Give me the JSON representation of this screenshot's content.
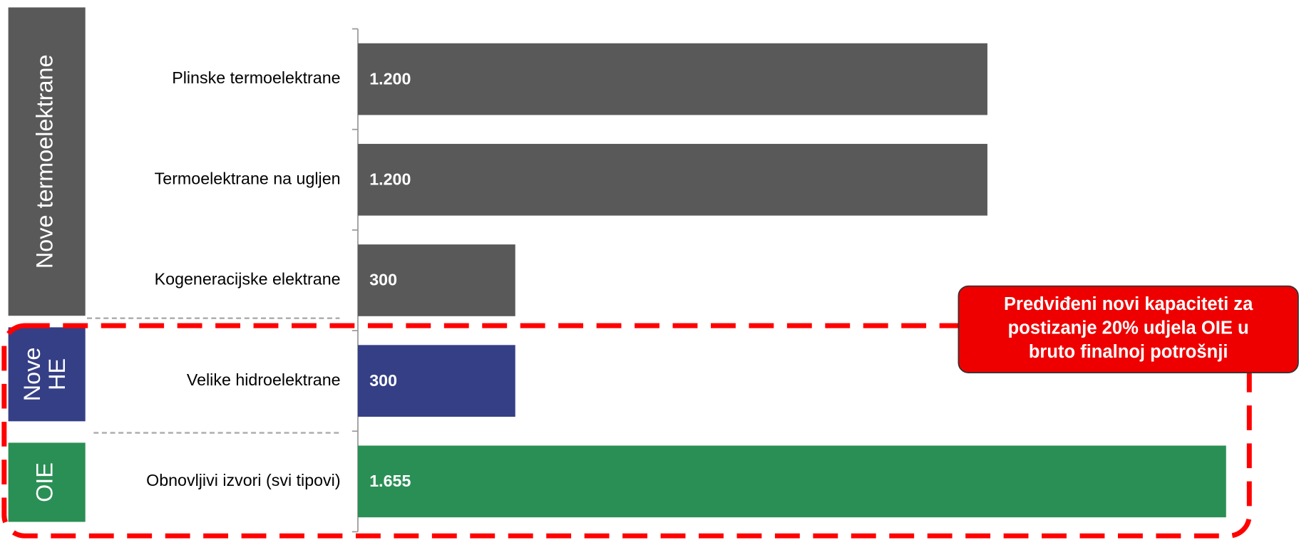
{
  "chart_data": {
    "type": "bar",
    "orientation": "horizontal",
    "categories": [
      "Plinske termoelektrane",
      "Termoelektrane na ugljen",
      "Kogeneracijske elektrane",
      "Velike hidroelektrane",
      "Obnovljivi izvori (svi tipovi)"
    ],
    "values": [
      1200,
      1200,
      300,
      300,
      1655
    ],
    "value_labels": [
      "1.200",
      "1.200",
      "300",
      "300",
      "1.655"
    ],
    "colors": [
      "#595959",
      "#595959",
      "#595959",
      "#353f86",
      "#2a8f55"
    ],
    "groups": [
      {
        "label": [
          "Nove termoelektrane"
        ],
        "color": "#595959"
      },
      {
        "label": [
          "Nove",
          "HE"
        ],
        "color": "#353f86"
      },
      {
        "label": [
          "OIE"
        ],
        "color": "#2a8f55"
      }
    ],
    "annotation": [
      "Predviđeni novi kapaciteti za",
      "postizanje 20% udjela OIE u",
      "bruto finalnoj potrošnji"
    ]
  }
}
